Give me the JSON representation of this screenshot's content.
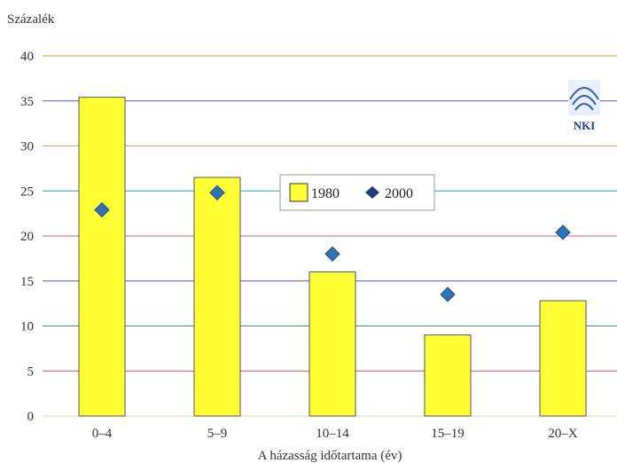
{
  "chart_data": {
    "type": "bar",
    "ylabel": "Százalék",
    "xlabel": "A házasság időtartama (év)",
    "categories": [
      "0–4",
      "5–9",
      "10–14",
      "15–19",
      "20–X"
    ],
    "series": [
      {
        "name": "1980",
        "kind": "bar",
        "values": [
          35.4,
          26.5,
          16.0,
          9.0,
          12.8
        ],
        "color": "#ffff33"
      },
      {
        "name": "2000",
        "kind": "marker",
        "values": [
          22.9,
          24.8,
          18.0,
          13.5,
          20.4
        ],
        "color": "#2f73b3"
      }
    ],
    "yticks": [
      "0",
      "5",
      "10",
      "15",
      "20",
      "25",
      "30",
      "35",
      "40"
    ],
    "ylim": [
      0,
      40
    ],
    "grid": true,
    "grid_colors": [
      "#c8e6a0",
      "#e05050",
      "#2a9c6a",
      "#6a50c8",
      "#e05090",
      "#2aa0c8",
      "#e0a050",
      "#5050e0",
      "#c8a020"
    ],
    "legend": {
      "position": "top-center"
    },
    "logo": {
      "text": "NKI"
    }
  }
}
